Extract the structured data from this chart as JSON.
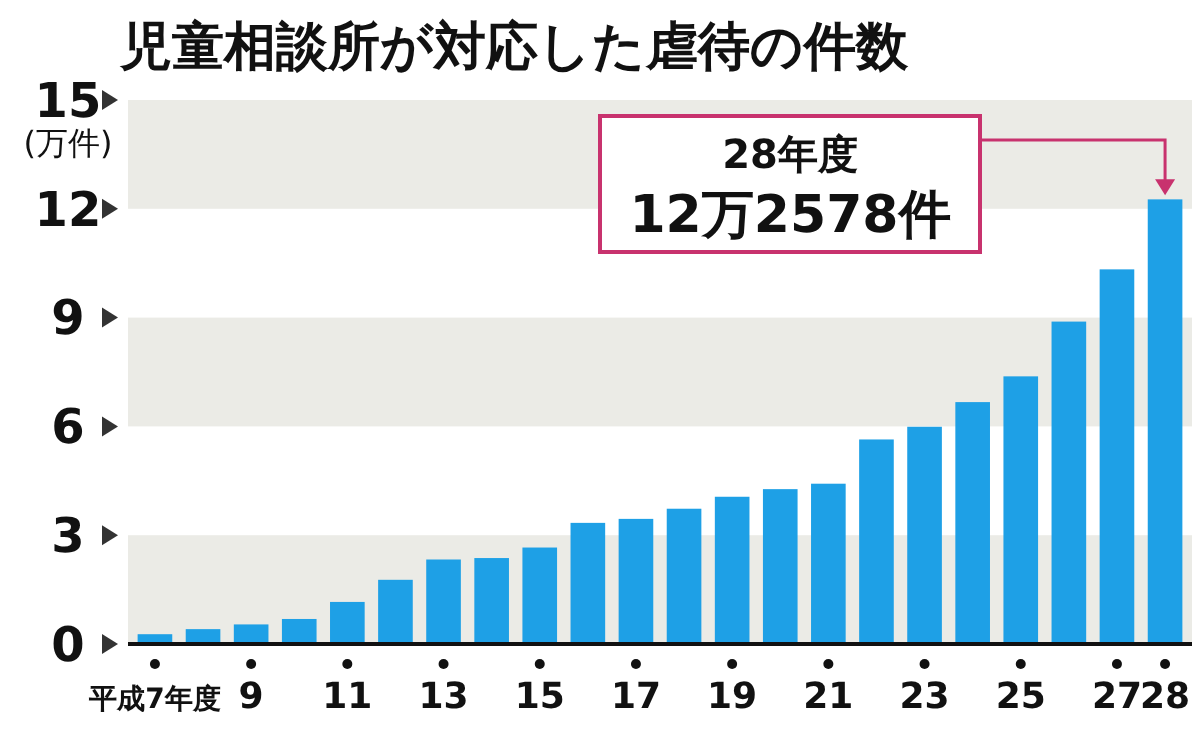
{
  "chart_data": {
    "type": "bar",
    "title": "児童相談所が対応した虐待の件数",
    "ylabel": "(万件)",
    "categories": [
      "平成7年度",
      null,
      "9",
      null,
      "11",
      null,
      "13",
      null,
      "15",
      null,
      "17",
      null,
      "19",
      null,
      "21",
      null,
      "23",
      null,
      "25",
      null,
      "27",
      "28"
    ],
    "values": [
      0.27,
      0.41,
      0.54,
      0.69,
      1.16,
      1.77,
      2.33,
      2.37,
      2.66,
      3.34,
      3.45,
      3.73,
      4.06,
      4.27,
      4.42,
      5.64,
      5.99,
      6.67,
      7.38,
      8.89,
      10.33,
      12.26
    ],
    "color": "#1ea0e6",
    "ylim": [
      0,
      15
    ],
    "yticks": [
      0,
      3,
      6,
      9,
      12,
      15
    ],
    "bands": [
      {
        "axis": "y",
        "from": 0,
        "to": 3,
        "color": "#ebebe6"
      },
      {
        "axis": "y",
        "from": 6,
        "to": 9,
        "color": "#ebebe6"
      },
      {
        "axis": "y",
        "from": 12,
        "to": 15,
        "color": "#ebebe6"
      }
    ],
    "annotations": [
      {
        "text": "28年度\n12万2578件",
        "x": "28",
        "y": 12.26
      }
    ]
  }
}
